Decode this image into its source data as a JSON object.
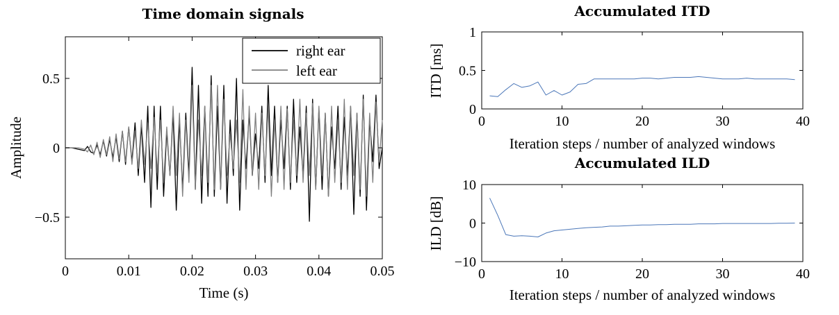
{
  "chart_data": [
    {
      "type": "line",
      "title": "Time domain signals",
      "xlabel": "Time (s)",
      "ylabel": "Amplitude",
      "xlim": [
        0,
        0.05
      ],
      "ylim": [
        -0.8,
        0.8
      ],
      "xticks": [
        0,
        0.01,
        0.02,
        0.03,
        0.04,
        0.05
      ],
      "xtick_labels": [
        "0",
        "0.01",
        "0.02",
        "0.03",
        "0.04",
        "0.05"
      ],
      "yticks": [
        -0.5,
        0,
        0.5
      ],
      "ytick_labels": [
        "−0.5",
        "0",
        "0.5"
      ],
      "grid": false,
      "legend_position": "top-right",
      "series": [
        {
          "name": "right ear",
          "color": "#000000",
          "x": [
            0,
            0.001,
            0.002,
            0.003,
            0.0035,
            0.004,
            0.0045,
            0.005,
            0.0055,
            0.006,
            0.0065,
            0.007,
            0.0075,
            0.008,
            0.0085,
            0.009,
            0.0095,
            0.01,
            0.0105,
            0.011,
            0.0115,
            0.012,
            0.0125,
            0.013,
            0.0135,
            0.014,
            0.0145,
            0.015,
            0.0155,
            0.016,
            0.0165,
            0.017,
            0.0175,
            0.018,
            0.0185,
            0.019,
            0.0195,
            0.02,
            0.0205,
            0.021,
            0.0215,
            0.022,
            0.0225,
            0.023,
            0.0235,
            0.024,
            0.0245,
            0.025,
            0.0255,
            0.026,
            0.0265,
            0.027,
            0.0275,
            0.028,
            0.0285,
            0.029,
            0.0295,
            0.03,
            0.0305,
            0.031,
            0.0315,
            0.032,
            0.0325,
            0.033,
            0.0335,
            0.034,
            0.0345,
            0.035,
            0.0355,
            0.036,
            0.0365,
            0.037,
            0.0375,
            0.038,
            0.0385,
            0.039,
            0.0395,
            0.04,
            0.0405,
            0.041,
            0.0415,
            0.042,
            0.0425,
            0.043,
            0.0435,
            0.044,
            0.0445,
            0.045,
            0.0455,
            0.046,
            0.0465,
            0.047,
            0.0475,
            0.048,
            0.0485,
            0.049,
            0.0495,
            0.05
          ],
          "y": [
            0,
            0,
            -0.01,
            -0.02,
            0.01,
            -0.03,
            -0.04,
            0.02,
            -0.05,
            0.05,
            -0.06,
            0.06,
            -0.07,
            0.08,
            -0.1,
            0.12,
            -0.12,
            0.15,
            -0.1,
            0.18,
            -0.2,
            0.16,
            -0.25,
            0.3,
            -0.43,
            0.3,
            -0.3,
            0.3,
            -0.35,
            0.12,
            -0.2,
            0.25,
            -0.45,
            0.2,
            -0.3,
            0.25,
            -0.2,
            0.58,
            -0.3,
            0.45,
            -0.4,
            0.3,
            -0.35,
            0.52,
            -0.35,
            0.3,
            -0.3,
            0.45,
            -0.4,
            0.2,
            -0.2,
            0.5,
            -0.45,
            0.2,
            -0.15,
            0.25,
            -0.2,
            0.1,
            -0.15,
            0.3,
            -0.25,
            0.45,
            -0.2,
            0.3,
            -0.25,
            0.2,
            -0.15,
            0.3,
            -0.3,
            0.35,
            -0.25,
            0.15,
            -0.2,
            0.3,
            -0.53,
            0.35,
            -0.3,
            0.28,
            -0.3,
            0.25,
            -0.35,
            0.15,
            -0.15,
            0.3,
            -0.3,
            0.22,
            -0.2,
            0.3,
            -0.48,
            0.25,
            -0.35,
            0.38,
            -0.45,
            0.2,
            -0.1,
            0.38,
            -0.15,
            0.0
          ]
        },
        {
          "name": "left ear",
          "color": "#808080",
          "x": [
            0,
            0.001,
            0.002,
            0.003,
            0.0035,
            0.004,
            0.0045,
            0.005,
            0.0055,
            0.006,
            0.0065,
            0.007,
            0.0075,
            0.008,
            0.0085,
            0.009,
            0.0095,
            0.01,
            0.0105,
            0.011,
            0.0115,
            0.012,
            0.0125,
            0.013,
            0.0135,
            0.014,
            0.0145,
            0.015,
            0.0155,
            0.016,
            0.0165,
            0.017,
            0.0175,
            0.018,
            0.0185,
            0.019,
            0.0195,
            0.02,
            0.0205,
            0.021,
            0.0215,
            0.022,
            0.0225,
            0.023,
            0.0235,
            0.024,
            0.0245,
            0.025,
            0.0255,
            0.026,
            0.0265,
            0.027,
            0.0275,
            0.028,
            0.0285,
            0.029,
            0.0295,
            0.03,
            0.0305,
            0.031,
            0.0315,
            0.032,
            0.0325,
            0.033,
            0.0335,
            0.034,
            0.0345,
            0.035,
            0.0355,
            0.036,
            0.0365,
            0.037,
            0.0375,
            0.038,
            0.0385,
            0.039,
            0.0395,
            0.04,
            0.0405,
            0.041,
            0.0415,
            0.042,
            0.0425,
            0.043,
            0.0435,
            0.044,
            0.0445,
            0.045,
            0.0455,
            0.046,
            0.0465,
            0.047,
            0.0475,
            0.048,
            0.0485,
            0.049,
            0.0495,
            0.05
          ],
          "y": [
            0,
            0,
            0,
            -0.01,
            -0.03,
            0.02,
            -0.05,
            0.04,
            -0.07,
            0.06,
            -0.05,
            0.08,
            -0.1,
            0.1,
            -0.08,
            0.12,
            -0.1,
            0.15,
            -0.12,
            0.12,
            -0.15,
            0.2,
            -0.12,
            0.18,
            -0.15,
            0.22,
            -0.18,
            0.2,
            -0.25,
            0.15,
            -0.2,
            0.3,
            -0.2,
            0.25,
            -0.35,
            0.2,
            -0.25,
            0.45,
            -0.3,
            0.2,
            -0.2,
            0.3,
            -0.25,
            0.45,
            -0.3,
            0.45,
            -0.3,
            0.35,
            -0.2,
            0.1,
            -0.15,
            0.2,
            -0.25,
            0.42,
            -0.3,
            0.3,
            -0.2,
            0.25,
            -0.3,
            0.25,
            -0.2,
            0.3,
            -0.35,
            0.2,
            -0.25,
            0.3,
            -0.3,
            0.28,
            -0.25,
            0.2,
            -0.2,
            0.35,
            -0.25,
            0.25,
            -0.2,
            0.32,
            -0.3,
            0.3,
            -0.2,
            0.25,
            -0.35,
            0.3,
            -0.25,
            0.2,
            -0.25,
            0.35,
            -0.3,
            0.3,
            -0.2,
            0.25,
            -0.3,
            0.35,
            -0.35,
            0.25,
            -0.25,
            0.33,
            -0.1,
            0.2
          ]
        }
      ]
    },
    {
      "type": "line",
      "title": "Accumulated ITD",
      "xlabel": "Iteration steps / number of analyzed windows",
      "ylabel": "ITD [ms]",
      "xlim": [
        0,
        40
      ],
      "ylim": [
        0,
        1
      ],
      "xticks": [
        0,
        10,
        20,
        30,
        40
      ],
      "xtick_labels": [
        "0",
        "10",
        "20",
        "30",
        "40"
      ],
      "yticks": [
        0,
        0.5,
        1
      ],
      "ytick_labels": [
        "0",
        "0.5",
        "1"
      ],
      "grid": false,
      "series": [
        {
          "color": "#4a76b8",
          "x": [
            1,
            2,
            3,
            4,
            5,
            6,
            7,
            8,
            9,
            10,
            11,
            12,
            13,
            14,
            15,
            16,
            17,
            18,
            19,
            20,
            21,
            22,
            23,
            24,
            25,
            26,
            27,
            28,
            29,
            30,
            31,
            32,
            33,
            34,
            35,
            36,
            37,
            38,
            39
          ],
          "y": [
            0.17,
            0.16,
            0.25,
            0.33,
            0.28,
            0.3,
            0.35,
            0.18,
            0.24,
            0.18,
            0.22,
            0.32,
            0.33,
            0.39,
            0.39,
            0.39,
            0.39,
            0.39,
            0.39,
            0.4,
            0.4,
            0.39,
            0.4,
            0.41,
            0.41,
            0.41,
            0.42,
            0.41,
            0.4,
            0.39,
            0.39,
            0.39,
            0.4,
            0.39,
            0.39,
            0.39,
            0.39,
            0.39,
            0.38
          ]
        }
      ]
    },
    {
      "type": "line",
      "title": "Accumulated ILD",
      "xlabel": "Iteration steps / number of analyzed windows",
      "ylabel": "ILD [dB]",
      "xlim": [
        0,
        40
      ],
      "ylim": [
        -10,
        10
      ],
      "xticks": [
        0,
        10,
        20,
        30,
        40
      ],
      "xtick_labels": [
        "0",
        "10",
        "20",
        "30",
        "40"
      ],
      "yticks": [
        -10,
        0,
        10
      ],
      "ytick_labels": [
        "−10",
        "0",
        "10"
      ],
      "grid": false,
      "series": [
        {
          "color": "#4a76b8",
          "x": [
            1,
            2,
            3,
            4,
            5,
            6,
            7,
            8,
            9,
            10,
            11,
            12,
            13,
            14,
            15,
            16,
            17,
            18,
            19,
            20,
            21,
            22,
            23,
            24,
            25,
            26,
            27,
            28,
            29,
            30,
            31,
            32,
            33,
            34,
            35,
            36,
            37,
            38,
            39
          ],
          "y": [
            6.5,
            2,
            -3,
            -3.4,
            -3.3,
            -3.4,
            -3.6,
            -2.6,
            -2,
            -1.8,
            -1.6,
            -1.4,
            -1.2,
            -1.1,
            -1,
            -0.8,
            -0.8,
            -0.7,
            -0.6,
            -0.5,
            -0.5,
            -0.4,
            -0.4,
            -0.3,
            -0.3,
            -0.3,
            -0.2,
            -0.2,
            -0.2,
            -0.1,
            -0.1,
            -0.1,
            -0.1,
            -0.1,
            -0.1,
            -0.1,
            -0.05,
            -0.05,
            0
          ]
        }
      ]
    }
  ]
}
